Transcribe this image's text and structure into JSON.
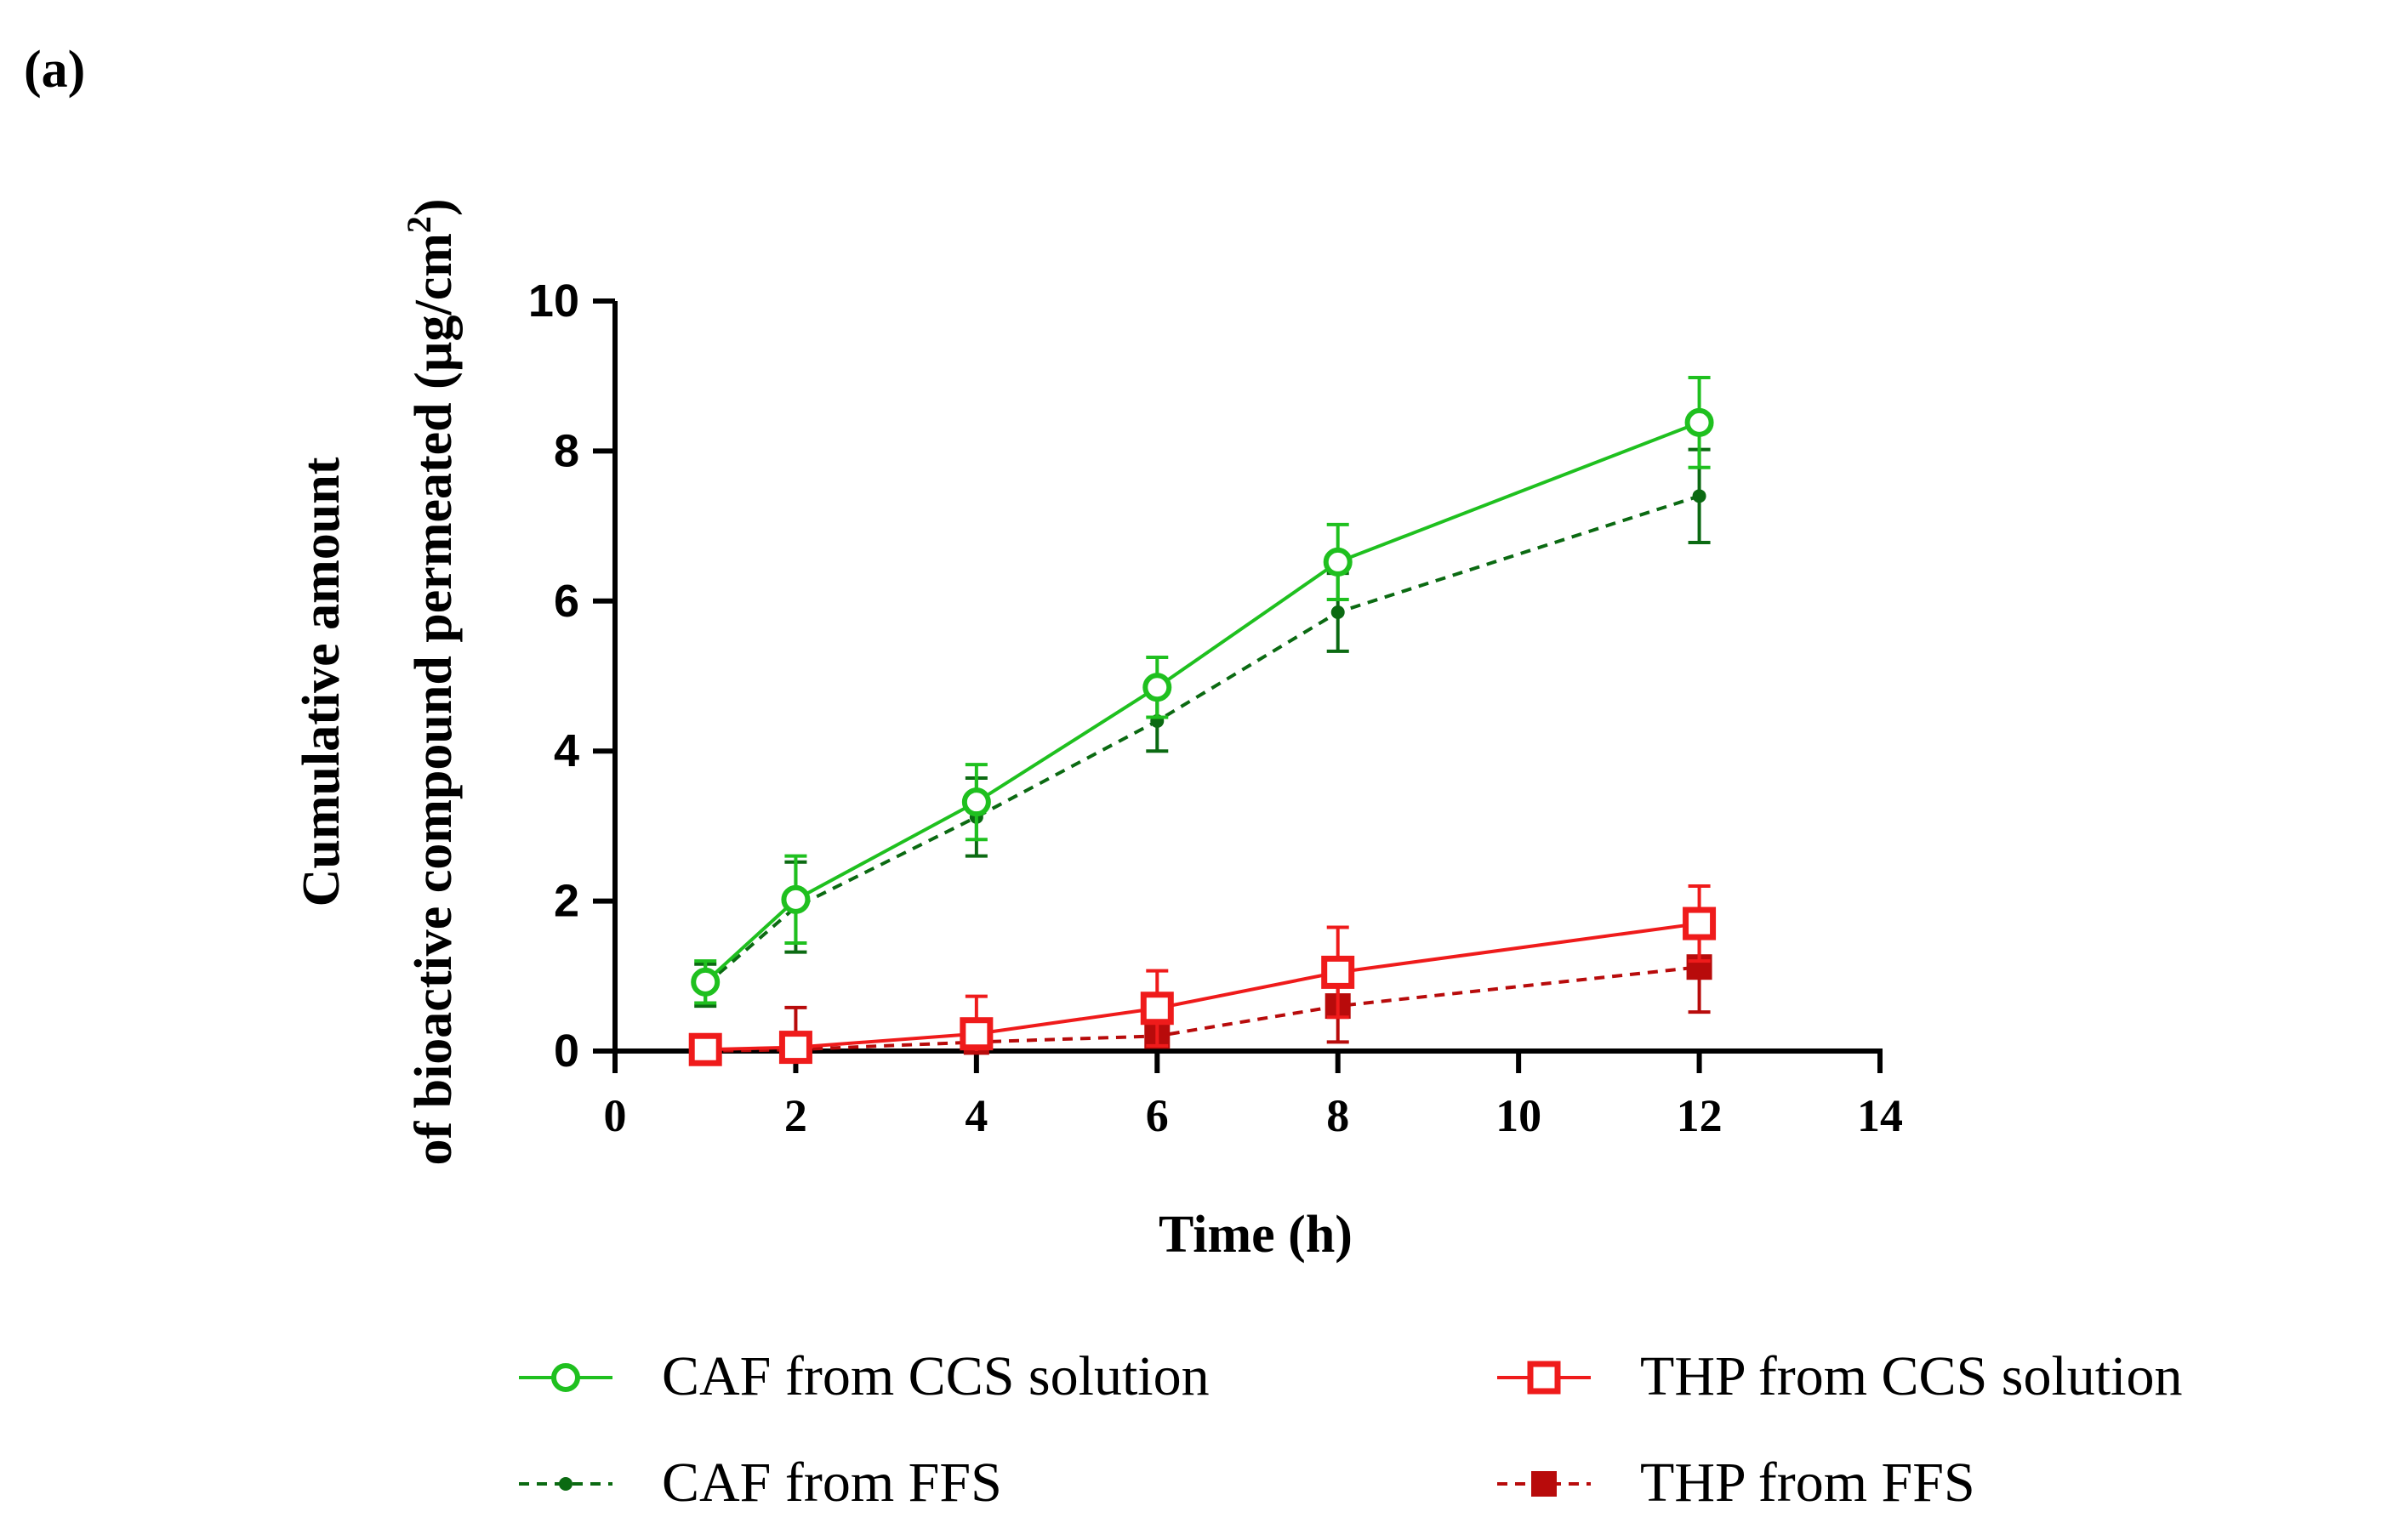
{
  "panel_label": "(a)",
  "chart_data": {
    "type": "line",
    "title": "",
    "xlabel": "Time (h)",
    "ylabel_line1": "Cumulative amount",
    "ylabel_line2": "of bioactive compound permeated (µg/cm",
    "ylabel_sup": "2",
    "ylabel_close": ")",
    "xlim": [
      0,
      14
    ],
    "ylim": [
      0,
      10
    ],
    "x_ticks": [
      "0",
      "2",
      "4",
      "6",
      "8",
      "10",
      "12",
      "14"
    ],
    "x_tick_values": [
      0,
      2,
      4,
      6,
      8,
      10,
      12,
      14
    ],
    "y_ticks": [
      "0",
      "2",
      "4",
      "6",
      "8",
      "10"
    ],
    "y_tick_values": [
      0,
      2,
      4,
      6,
      8,
      10
    ],
    "x": [
      1,
      2,
      4,
      6,
      8,
      12
    ],
    "legend_position": "bottom",
    "series": [
      {
        "name": "CAF from CCS solution",
        "color": "#1fc01f",
        "dash": "solid",
        "marker": "open-circle",
        "values": [
          0.92,
          2.02,
          3.32,
          4.85,
          6.52,
          8.38
        ],
        "errors": [
          0.28,
          0.58,
          0.5,
          0.4,
          0.5,
          0.6
        ]
      },
      {
        "name": "CAF from FFS",
        "color": "#0b6a12",
        "dash": "dashed",
        "marker": "small-filled-circle",
        "values": [
          0.88,
          1.92,
          3.12,
          4.4,
          5.85,
          7.4
        ],
        "errors": [
          0.28,
          0.6,
          0.52,
          0.4,
          0.52,
          0.62
        ]
      },
      {
        "name": "THP from CCS solution",
        "color": "#ef1b1b",
        "dash": "solid",
        "marker": "open-square",
        "values": [
          0.02,
          0.05,
          0.23,
          0.57,
          1.05,
          1.7
        ],
        "errors": [
          0.04,
          0.1,
          0.5,
          0.5,
          0.6,
          0.5
        ]
      },
      {
        "name": "THP from FFS",
        "color": "#b80b0b",
        "dash": "dashed",
        "marker": "filled-square",
        "values": [
          0.0,
          0.02,
          0.12,
          0.2,
          0.6,
          1.12
        ],
        "errors": [
          0.04,
          0.56,
          0.3,
          0.0,
          0.48,
          0.6
        ]
      }
    ]
  }
}
